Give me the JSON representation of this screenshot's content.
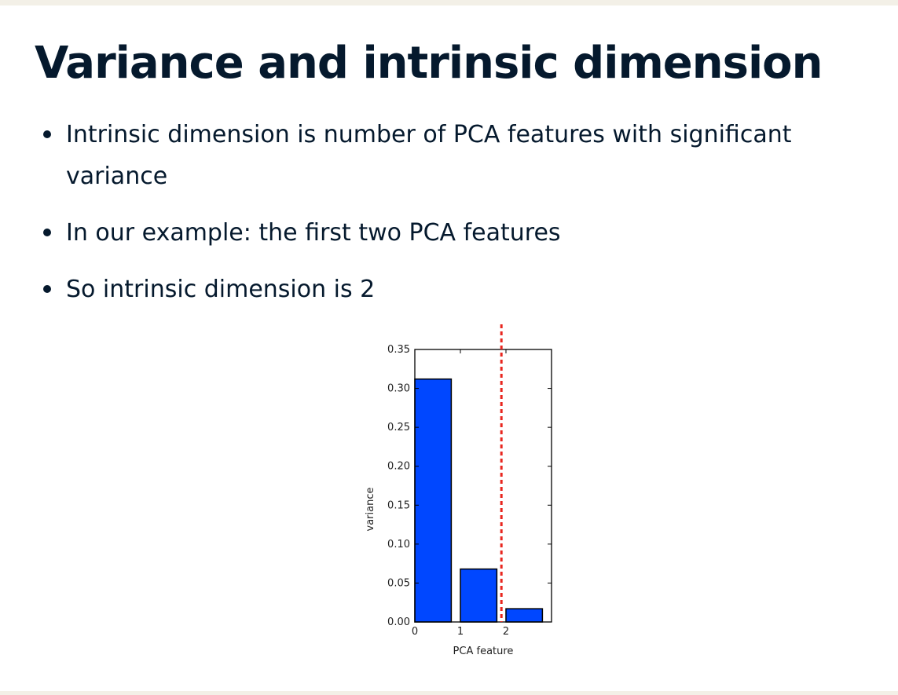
{
  "slide": {
    "title": "Variance and intrinsic dimension",
    "bullets": [
      "Intrinsic dimension is number of PCA features with significant variance",
      "In our example: the first two PCA features",
      "So intrinsic dimension is 2"
    ]
  },
  "chart_data": {
    "type": "bar",
    "categories": [
      "0",
      "1",
      "2"
    ],
    "values": [
      0.312,
      0.068,
      0.017
    ],
    "xlabel": "PCA feature",
    "ylabel": "variance",
    "ylim": [
      0,
      0.35
    ],
    "xlim": [
      0,
      3
    ],
    "xticks": [
      0,
      1,
      2
    ],
    "yticks": [
      0.0,
      0.05,
      0.1,
      0.15,
      0.2,
      0.25,
      0.3,
      0.35
    ],
    "ytick_labels": [
      "0.00",
      "0.05",
      "0.10",
      "0.15",
      "0.20",
      "0.25",
      "0.30",
      "0.35"
    ],
    "threshold_line": {
      "x": 1.9,
      "style": "dashed",
      "color": "#e8261f"
    },
    "bar_color": "#0047ff",
    "grid": false
  }
}
